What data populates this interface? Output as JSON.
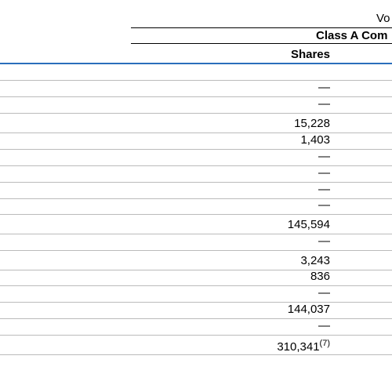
{
  "header": {
    "title": "Vo",
    "subtitle": "Class A Com",
    "column": "Shares"
  },
  "table": {
    "rows": [
      {
        "shares": "—"
      },
      {
        "shares": "—"
      },
      {
        "shares": "15,228"
      },
      {
        "shares": "1,403"
      },
      {
        "shares": "—"
      },
      {
        "shares": "—"
      },
      {
        "shares": "—"
      },
      {
        "shares": "—"
      },
      {
        "shares": "145,594"
      },
      {
        "shares": "—"
      },
      {
        "shares": "3,243"
      },
      {
        "shares": "836"
      },
      {
        "shares": "—"
      },
      {
        "shares": "144,037"
      },
      {
        "shares": "—"
      },
      {
        "shares": "310,341",
        "note": "(7)"
      }
    ]
  }
}
